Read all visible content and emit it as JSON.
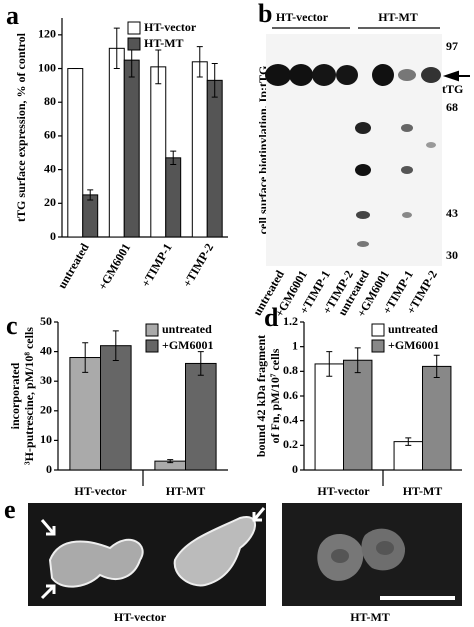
{
  "chart_data": [
    {
      "type": "bar",
      "panel": "a",
      "ylabel": [
        "tTG surface expression, % of control"
      ],
      "categories": [
        "untreated",
        "+GM6001",
        "+TIMP-1",
        "+TIMP-2"
      ],
      "series": [
        {
          "name": "HT-vector",
          "color": "#ffffff",
          "values": [
            100,
            112,
            101,
            104
          ],
          "errors": [
            0,
            12,
            10,
            9
          ]
        },
        {
          "name": "HT-MT",
          "color": "#555555",
          "values": [
            25,
            105,
            47,
            93
          ],
          "errors": [
            3,
            10,
            4,
            10
          ]
        }
      ],
      "ylim": [
        0,
        130
      ],
      "yticks": [
        0,
        20,
        40,
        60,
        80,
        100,
        120
      ],
      "legend": "upper right",
      "rotate_categories": true
    },
    {
      "type": "bar",
      "panel": "c",
      "ylabel": [
        "incorporated",
        "³H-putrescine, pM/10⁸ cells"
      ],
      "categories": [
        "HT-vector",
        "HT-MT"
      ],
      "series": [
        {
          "name": "untreated",
          "color": "#aaaaaa",
          "values": [
            38,
            3
          ],
          "errors": [
            5,
            0.5
          ]
        },
        {
          "name": "+GM6001",
          "color": "#666666",
          "values": [
            42,
            36
          ],
          "errors": [
            5,
            4
          ]
        }
      ],
      "ylim": [
        0,
        50
      ],
      "yticks": [
        0,
        10,
        20,
        30,
        40,
        50
      ],
      "legend": "upper right",
      "rotate_categories": false
    },
    {
      "type": "bar",
      "panel": "d",
      "ylabel": [
        "bound 42 kDa fragment",
        "of Fn, pM/10⁷ cells"
      ],
      "categories": [
        "HT-vector",
        "HT-MT"
      ],
      "series": [
        {
          "name": "untreated",
          "color": "#ffffff",
          "values": [
            0.86,
            0.23
          ],
          "errors": [
            0.1,
            0.03
          ]
        },
        {
          "name": "+GM6001",
          "color": "#888888",
          "values": [
            0.89,
            0.84
          ],
          "errors": [
            0.1,
            0.09
          ]
        }
      ],
      "ylim": [
        0,
        1.2
      ],
      "yticks": [
        0,
        0.2,
        0.4,
        0.6,
        0.8,
        1,
        1.2
      ],
      "legend": "upper right",
      "rotate_categories": false
    }
  ],
  "blot": {
    "panel": "b",
    "ylabel": "cell surface biotinylation, Ip:tTG",
    "groups": [
      "HT-vector",
      "HT-MT"
    ],
    "lanes": [
      "untreated",
      "+GM6001",
      "+TIMP-1",
      "+TIMP-2",
      "untreated",
      "+GM6001",
      "+TIMP-1",
      "+TIMP-2"
    ],
    "markers": [
      97,
      68,
      43,
      30
    ],
    "band_label": "tTG"
  },
  "micrographs": {
    "panel": "e",
    "captions": [
      "HT-vector",
      "HT-MT"
    ]
  }
}
